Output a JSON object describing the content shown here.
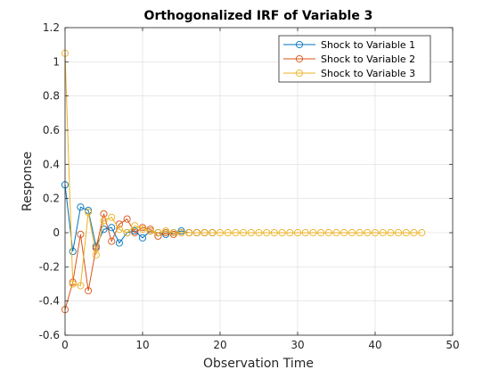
{
  "chart_data": {
    "type": "line",
    "title": "Orthogonalized IRF of Variable 3",
    "xlabel": "Observation Time",
    "ylabel": "Response",
    "xlim": [
      0,
      50
    ],
    "ylim": [
      -0.6,
      1.2
    ],
    "xticks": [
      0,
      10,
      20,
      30,
      40,
      50
    ],
    "yticks": [
      -0.6,
      -0.4,
      -0.2,
      0,
      0.2,
      0.4,
      0.6,
      0.8,
      1,
      1.2
    ],
    "xtick_labels": [
      "0",
      "10",
      "20",
      "30",
      "40",
      "50"
    ],
    "ytick_labels": [
      "-0.6",
      "-0.4",
      "-0.2",
      "0",
      "0.2",
      "0.4",
      "0.6",
      "0.8",
      "1",
      "1.2"
    ],
    "grid": true,
    "legend_position": "top-right",
    "marker": "circle",
    "series": [
      {
        "name": "Shock to Variable 1",
        "color": "#0072BD",
        "x": [
          0,
          1,
          2,
          3,
          4,
          5,
          6,
          7,
          8,
          9,
          10,
          11,
          12,
          13,
          14,
          15,
          16,
          17,
          18,
          19
        ],
        "y": [
          0.28,
          -0.11,
          0.15,
          0.13,
          -0.08,
          0.02,
          0.03,
          -0.06,
          0.0,
          0.01,
          -0.03,
          0.01,
          0.0,
          -0.01,
          0.0,
          0.01,
          0.0,
          0.0,
          0.0,
          0.0
        ]
      },
      {
        "name": "Shock to Variable 2",
        "color": "#D95319",
        "x": [
          0,
          1,
          2,
          3,
          4,
          5,
          6,
          7,
          8,
          9,
          10,
          11,
          12,
          13,
          14,
          15,
          16,
          17,
          18,
          19
        ],
        "y": [
          -0.45,
          -0.29,
          -0.01,
          -0.34,
          -0.09,
          0.11,
          -0.05,
          0.05,
          0.08,
          0.0,
          0.03,
          0.02,
          -0.02,
          0.0,
          -0.01,
          0.0,
          0.0,
          0.0,
          0.0,
          0.0
        ]
      },
      {
        "name": "Shock to Variable 3",
        "color": "#EDB120",
        "x": [
          0,
          1,
          2,
          3,
          4,
          5,
          6,
          7,
          8,
          9,
          10,
          11,
          12,
          13,
          14,
          15,
          16,
          17,
          18,
          19,
          20,
          21,
          22,
          23,
          24,
          25,
          26,
          27,
          28,
          29,
          30,
          31,
          32,
          33,
          34,
          35,
          36,
          37,
          38,
          39,
          40,
          41,
          42,
          43,
          44,
          45,
          46
        ],
        "y": [
          1.05,
          -0.3,
          -0.31,
          0.12,
          -0.13,
          0.07,
          0.09,
          0.02,
          0.0,
          0.04,
          0.02,
          0.01,
          0.0,
          0.01,
          0.0,
          0.0,
          0.0,
          0.0,
          0.0,
          0.0,
          0.0,
          0.0,
          0.0,
          0.0,
          0.0,
          0.0,
          0.0,
          0.0,
          0.0,
          0.0,
          0.0,
          0.0,
          0.0,
          0.0,
          0.0,
          0.0,
          0.0,
          0.0,
          0.0,
          0.0,
          0.0,
          0.0,
          0.0,
          0.0,
          0.0,
          0.0,
          0.0
        ]
      }
    ]
  }
}
